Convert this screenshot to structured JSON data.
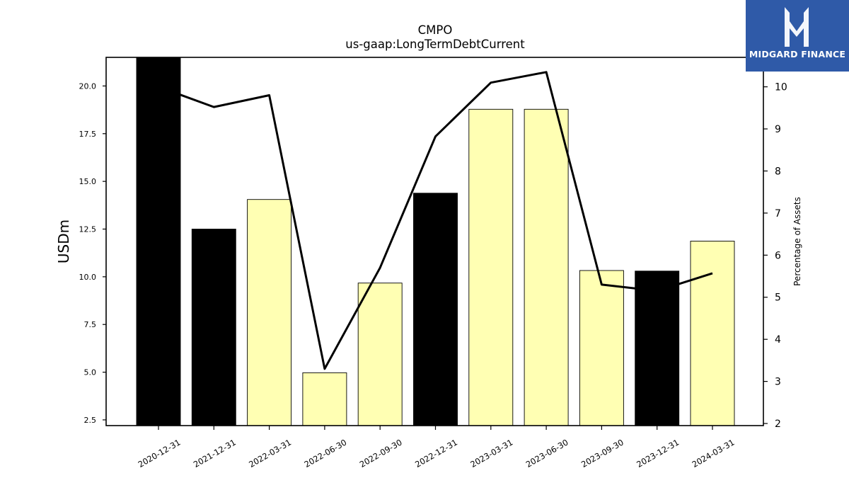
{
  "chart_data": {
    "type": "bar",
    "title": "CMPO",
    "subtitle": "us-gaap:LongTermDebtCurrent",
    "ylabel": "USDm",
    "y2label": "Percentage of Assets",
    "categories": [
      "2020-12-31",
      "2021-12-31",
      "2022-03-31",
      "2022-06-30",
      "2022-09-30",
      "2022-12-31",
      "2023-03-31",
      "2023-06-30",
      "2023-09-30",
      "2023-12-31",
      "2024-03-31"
    ],
    "series": [
      {
        "type": "bar",
        "values": [
          21.5,
          12.5,
          14.05,
          4.97,
          9.67,
          14.38,
          18.78,
          18.78,
          10.33,
          10.3,
          11.87
        ],
        "colors": [
          "#000000",
          "#000000",
          "#ffffb3",
          "#ffffb3",
          "#ffffb3",
          "#000000",
          "#ffffb3",
          "#ffffb3",
          "#ffffb3",
          "#000000",
          "#ffffb3"
        ]
      },
      {
        "type": "line",
        "axis": "right",
        "values": [
          10.0,
          9.52,
          9.8,
          3.3,
          5.7,
          8.82,
          10.1,
          10.35,
          5.3,
          5.15,
          5.57
        ],
        "color": "#000000"
      }
    ],
    "ylim": [
      2.2,
      21.5
    ],
    "y2lim": [
      1.95,
      10.7
    ],
    "yticks": [
      "2.5",
      "5.0",
      "7.5",
      "10.0",
      "12.5",
      "15.0",
      "17.5",
      "20.0"
    ],
    "y2ticks": [
      "2",
      "3",
      "4",
      "5",
      "6",
      "7",
      "8",
      "9",
      "10"
    ],
    "grid": false
  },
  "logo": {
    "text": "MIDGARD FINANCE",
    "color": "#2f5aa8"
  }
}
